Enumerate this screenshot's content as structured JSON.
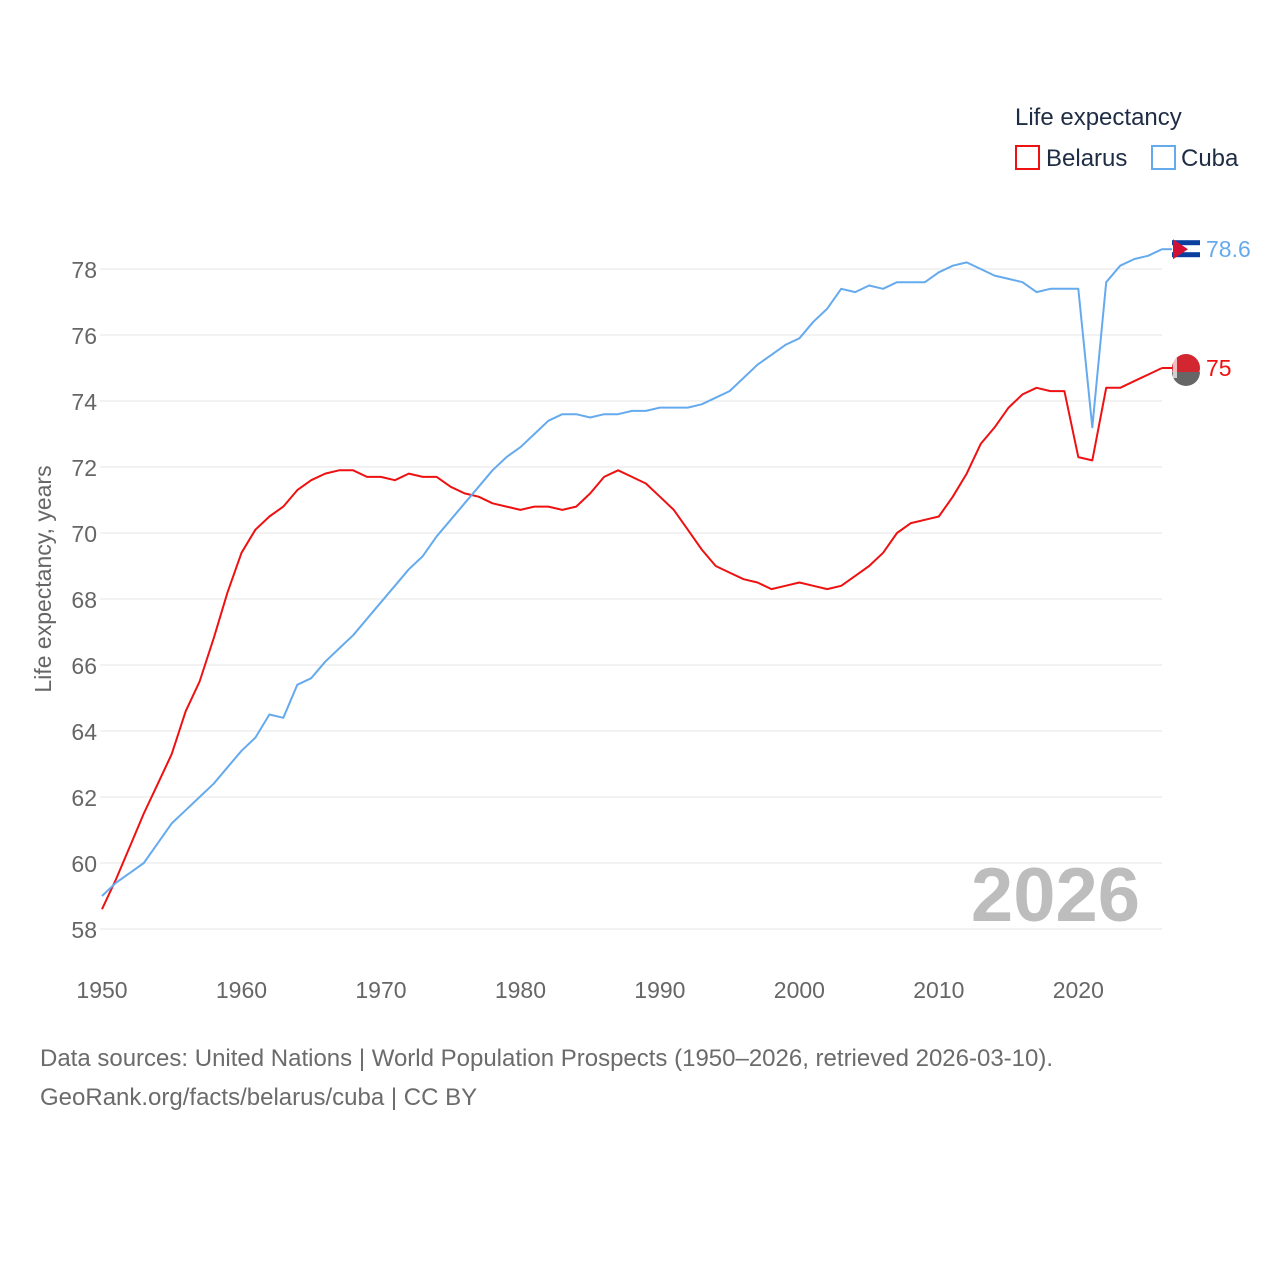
{
  "chart_data": {
    "type": "line",
    "ylabel": "Life expectancy, years",
    "xlabel": "",
    "legend_title": "Life expectancy",
    "legend_position": "top-right",
    "ylim": [
      57,
      79.5
    ],
    "xlim": [
      1950,
      2026
    ],
    "yticks": [
      58,
      60,
      62,
      64,
      66,
      68,
      70,
      72,
      74,
      76,
      78
    ],
    "xticks": [
      1950,
      1960,
      1970,
      1980,
      1990,
      2000,
      2010,
      2020
    ],
    "grid": true,
    "watermark_year": "2026",
    "x_start": 1950,
    "series": [
      {
        "name": "Belarus",
        "color": "#ee1111",
        "end_label": "75",
        "values": [
          58.6,
          59.5,
          60.5,
          61.5,
          62.4,
          63.3,
          64.6,
          65.5,
          66.8,
          68.2,
          69.4,
          70.1,
          70.5,
          70.8,
          71.3,
          71.6,
          71.8,
          71.9,
          71.9,
          71.7,
          71.7,
          71.6,
          71.8,
          71.7,
          71.7,
          71.4,
          71.2,
          71.1,
          70.9,
          70.8,
          70.7,
          70.8,
          70.8,
          70.7,
          70.8,
          71.2,
          71.7,
          71.9,
          71.7,
          71.5,
          71.1,
          70.7,
          70.1,
          69.5,
          69.0,
          68.8,
          68.6,
          68.5,
          68.3,
          68.4,
          68.5,
          68.4,
          68.3,
          68.4,
          68.7,
          69.0,
          69.4,
          70.0,
          70.3,
          70.4,
          70.5,
          71.1,
          71.8,
          72.7,
          73.2,
          73.8,
          74.2,
          74.4,
          74.3,
          74.3,
          72.3,
          72.2,
          74.4,
          74.4,
          74.6,
          74.8,
          75.0
        ]
      },
      {
        "name": "Cuba",
        "color": "#66aaee",
        "end_label": "78.6",
        "values": [
          59.0,
          59.4,
          59.7,
          60.0,
          60.6,
          61.2,
          61.6,
          62.0,
          62.4,
          62.9,
          63.4,
          63.8,
          64.5,
          64.4,
          65.4,
          65.6,
          66.1,
          66.5,
          66.9,
          67.4,
          67.9,
          68.4,
          68.9,
          69.3,
          69.9,
          70.4,
          70.9,
          71.4,
          71.9,
          72.3,
          72.6,
          73.0,
          73.4,
          73.6,
          73.6,
          73.5,
          73.6,
          73.6,
          73.7,
          73.7,
          73.8,
          73.8,
          73.8,
          73.9,
          74.1,
          74.3,
          74.7,
          75.1,
          75.4,
          75.7,
          75.9,
          76.4,
          76.8,
          77.4,
          77.3,
          77.5,
          77.4,
          77.6,
          77.6,
          77.6,
          77.9,
          78.1,
          78.2,
          78.0,
          77.8,
          77.7,
          77.6,
          77.3,
          77.4,
          77.4,
          77.4,
          73.2,
          77.6,
          78.1,
          78.3,
          78.4,
          78.6
        ]
      }
    ]
  },
  "footer": {
    "source": "Data sources: United Nations | World Population Prospects (1950–2026, retrieved 2026-03-10).",
    "credit": "GeoRank.org/facts/belarus/cuba | CC BY"
  }
}
